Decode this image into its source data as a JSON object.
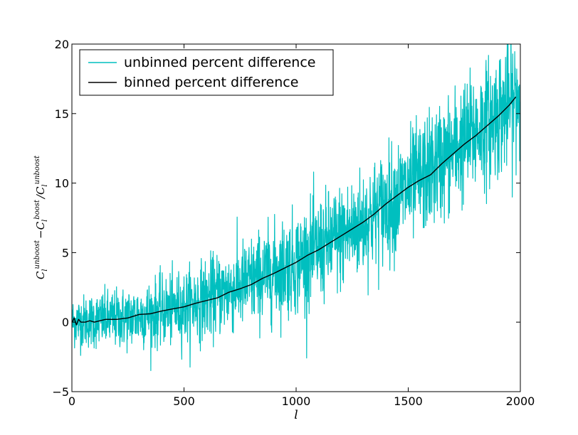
{
  "chart_data": {
    "type": "line",
    "title": "",
    "xlabel": "l",
    "ylabel": {
      "base1": "C",
      "sup1": "unboost",
      "sub1": "l",
      "minus": "−",
      "base2": "C",
      "sup2": "boost",
      "sub2": "l",
      "slash": "/",
      "base3": "C",
      "sup3": "unboost",
      "sub3": "l"
    },
    "xlim": [
      0,
      2000
    ],
    "ylim": [
      -5,
      20
    ],
    "xticks": [
      0,
      500,
      1000,
      1500,
      2000
    ],
    "yticks": [
      -5,
      0,
      5,
      10,
      15,
      20
    ],
    "xtick_labels": [
      "0",
      "500",
      "1000",
      "1500",
      "2000"
    ],
    "ytick_labels": [
      "−5",
      "0",
      "5",
      "10",
      "15",
      "20"
    ],
    "legend_position": "upper-left",
    "series": [
      {
        "name": "unbinned percent difference",
        "color": "#00bfbf",
        "style": "noisy",
        "x_range": [
          2,
          2000
        ],
        "mean_curve": {
          "x": [
            0,
            250,
            500,
            750,
            1000,
            1250,
            1500,
            1750,
            2000
          ],
          "y": [
            0,
            0.3,
            1.1,
            2.6,
            4.3,
            6.6,
            9.6,
            13.0,
            16.3
          ]
        },
        "noise_sd": {
          "x": [
            0,
            500,
            1000,
            1500,
            2000
          ],
          "y": [
            0.9,
            1.3,
            1.8,
            2.0,
            2.3
          ]
        }
      },
      {
        "name": "binned percent difference",
        "color": "#000000",
        "x": [
          2,
          10,
          20,
          30,
          40,
          60,
          80,
          100,
          150,
          200,
          250,
          300,
          350,
          400,
          450,
          500,
          550,
          600,
          650,
          700,
          750,
          800,
          850,
          900,
          950,
          1000,
          1050,
          1100,
          1150,
          1200,
          1250,
          1300,
          1350,
          1400,
          1450,
          1500,
          1550,
          1600,
          1650,
          1700,
          1750,
          1800,
          1850,
          1900,
          1950,
          1980
        ],
        "y": [
          0.0,
          0.3,
          -0.2,
          0.2,
          0.0,
          0.0,
          0.1,
          0.0,
          0.2,
          0.2,
          0.3,
          0.55,
          0.6,
          0.8,
          0.95,
          1.1,
          1.35,
          1.55,
          1.75,
          2.15,
          2.4,
          2.7,
          3.15,
          3.5,
          3.9,
          4.3,
          4.8,
          5.2,
          5.7,
          6.2,
          6.7,
          7.2,
          7.8,
          8.5,
          9.1,
          9.7,
          10.2,
          10.6,
          11.4,
          12.1,
          12.8,
          13.4,
          14.1,
          14.8,
          15.6,
          16.2
        ]
      }
    ]
  }
}
